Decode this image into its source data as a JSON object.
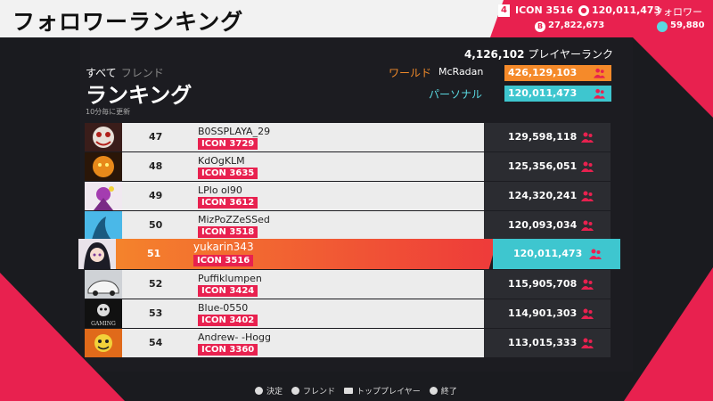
{
  "header": {
    "title": "フォロワーランキング",
    "rank_badge": "4",
    "icon_level": "ICON 3516",
    "followers": "120,011,473",
    "followers_label": "フォロワー",
    "points": "27,822,673",
    "gems": "59,880"
  },
  "tabs": {
    "all": "すべて",
    "friend": "フレンド"
  },
  "section_title": "ランキング",
  "update_note": "10分毎に更新",
  "player_rank": {
    "value": "4,126,102",
    "label": "プレイヤーランク"
  },
  "world": {
    "label": "ワールド",
    "name": "McRadan",
    "value": "426,129,103"
  },
  "personal": {
    "label": "パーソナル",
    "value": "120,011,473"
  },
  "rows": [
    {
      "rank": "47",
      "name": "B0SSPLAYA_29",
      "icon": "ICON 3729",
      "followers": "129,598,118"
    },
    {
      "rank": "48",
      "name": "KdOgKLM",
      "icon": "ICON 3635",
      "followers": "125,356,051"
    },
    {
      "rank": "49",
      "name": "LPlo ol90",
      "icon": "ICON 3612",
      "followers": "124,320,241"
    },
    {
      "rank": "50",
      "name": "MizPoZZeSSed",
      "icon": "ICON 3518",
      "followers": "120,093,034"
    },
    {
      "rank": "51",
      "name": "yukarin343",
      "icon": "ICON 3516",
      "followers": "120,011,473"
    },
    {
      "rank": "52",
      "name": "Puffiklumpen",
      "icon": "ICON 3424",
      "followers": "115,905,708"
    },
    {
      "rank": "53",
      "name": "Blue-0550",
      "icon": "ICON 3402",
      "followers": "114,901,303"
    },
    {
      "rank": "54",
      "name": "Andrew- -Hogg",
      "icon": "ICON 3360",
      "followers": "113,015,333"
    }
  ],
  "avatar_labels": {
    "row7": "GAMING"
  },
  "footer": {
    "confirm": "決定",
    "friend": "フレンド",
    "top_player": "トッププレイヤー",
    "exit": "終了"
  },
  "colors": {
    "accent_red": "#e8214f",
    "orange": "#f58a2a",
    "cyan": "#3ec6cf"
  }
}
